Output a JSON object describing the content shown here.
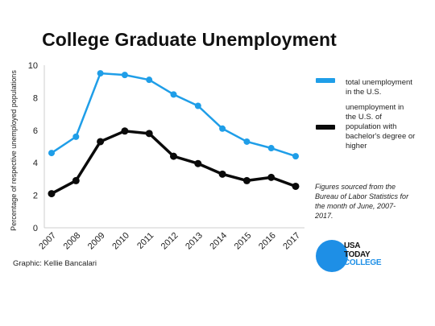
{
  "colors": {
    "total": "#1f9ee8",
    "bachelor": "#0a0a0a",
    "logo": "#1e8fe6",
    "axis": "#cfcfcf"
  },
  "chart_data": {
    "type": "line",
    "title": "College Graduate Unemployment",
    "ylabel": "Percentage of respective unemployed populations",
    "xlabel": "",
    "ylim": [
      0,
      10
    ],
    "yticks": [
      "0",
      "2",
      "4",
      "6",
      "8",
      "10"
    ],
    "x": [
      "2007",
      "2008",
      "2009",
      "2010",
      "2011",
      "2012",
      "2013",
      "2014",
      "2015",
      "2016",
      "2017"
    ],
    "series": [
      {
        "name": "total unemployment in the U.S.",
        "values": [
          4.6,
          5.6,
          9.5,
          9.4,
          9.1,
          8.2,
          7.5,
          6.1,
          5.3,
          4.9,
          4.4
        ]
      },
      {
        "name": "unemployment in the U.S. of population with bachelor's degree or higher",
        "values": [
          2.1,
          2.9,
          5.3,
          5.95,
          5.8,
          4.4,
          3.95,
          3.3,
          2.9,
          3.1,
          2.55
        ]
      }
    ],
    "legend_position": "right",
    "grid": false
  },
  "source_note": "Figures sourced from the Bureau of Labor Statistics for the month of June, 2007-2017.",
  "credit": "Graphic: Kellie Bancalari",
  "logo": {
    "line1": "USA",
    "line2": "TODAY",
    "line3": "COLLEGE"
  }
}
